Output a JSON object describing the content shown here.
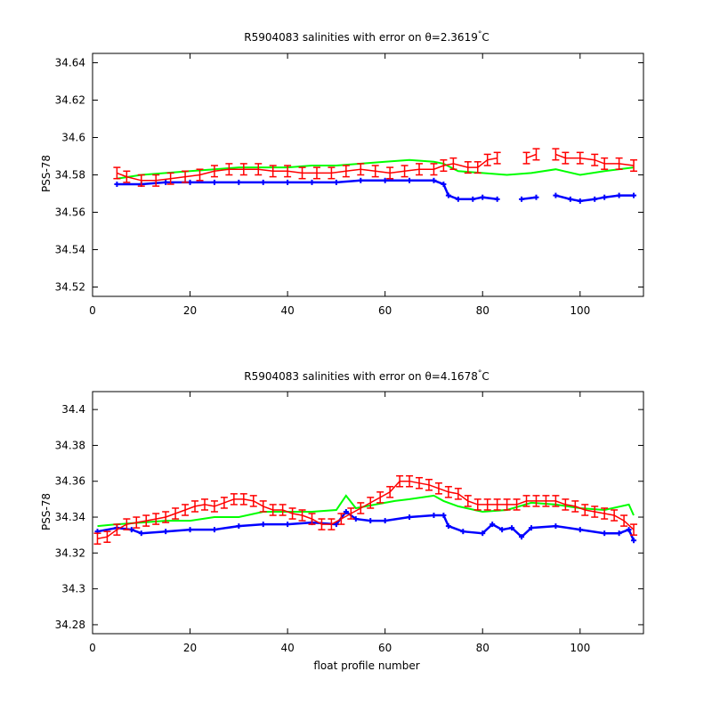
{
  "figure": {
    "xlabel": "float profile number"
  },
  "chart_data": [
    {
      "type": "line",
      "title_prefix": "R5904083 salinities with error on θ=2.3619",
      "title_unit": "C",
      "title_degree": "°",
      "xlabel": "",
      "ylabel": "PSS-78",
      "xlim": [
        0,
        113
      ],
      "ylim": [
        34.515,
        34.645
      ],
      "xticks": [
        0,
        20,
        40,
        60,
        80,
        100
      ],
      "yticks": [
        34.52,
        34.54,
        34.56,
        34.58,
        34.6,
        34.62,
        34.64
      ],
      "ytick_labels": [
        "34.52",
        "34.54",
        "34.56",
        "34.58",
        "34.6",
        "34.62",
        "34.64"
      ],
      "series": [
        {
          "color": "#0000ff",
          "style": "markers",
          "x": [
            5,
            10,
            15,
            20,
            25,
            30,
            35,
            40,
            45,
            50,
            55,
            60,
            65,
            70,
            72,
            73,
            75,
            78,
            80,
            83,
            88,
            91,
            95,
            98,
            100,
            103,
            105,
            108,
            111
          ],
          "y": [
            34.575,
            34.575,
            34.576,
            34.576,
            34.576,
            34.576,
            34.576,
            34.576,
            34.576,
            34.576,
            34.577,
            34.577,
            34.577,
            34.577,
            34.575,
            34.569,
            34.567,
            34.567,
            34.568,
            34.567,
            34.567,
            34.568,
            34.569,
            34.567,
            34.566,
            34.567,
            34.568,
            34.569,
            34.569
          ],
          "gaps_after": [
            83,
            91
          ]
        },
        {
          "color": "#00ff00",
          "style": "line",
          "x": [
            5,
            10,
            15,
            20,
            25,
            30,
            35,
            40,
            45,
            50,
            55,
            60,
            65,
            70,
            72,
            75,
            80,
            85,
            90,
            95,
            100,
            105,
            111
          ],
          "y": [
            34.578,
            34.58,
            34.581,
            34.582,
            34.583,
            34.584,
            34.584,
            34.584,
            34.585,
            34.585,
            34.586,
            34.587,
            34.588,
            34.587,
            34.586,
            34.582,
            34.581,
            34.58,
            34.581,
            34.583,
            34.58,
            34.582,
            34.584
          ]
        },
        {
          "color": "#ff0000",
          "style": "errorbar",
          "error": 0.003,
          "x": [
            5,
            7,
            10,
            13,
            16,
            19,
            22,
            25,
            28,
            31,
            34,
            37,
            40,
            43,
            46,
            49,
            52,
            55,
            58,
            61,
            64,
            67,
            70,
            72,
            74,
            77,
            79,
            81,
            83,
            89,
            91,
            95,
            97,
            100,
            103,
            105,
            108,
            111
          ],
          "y": [
            34.581,
            34.579,
            34.577,
            34.577,
            34.578,
            34.579,
            34.58,
            34.582,
            34.583,
            34.583,
            34.583,
            34.582,
            34.582,
            34.581,
            34.581,
            34.581,
            34.582,
            34.583,
            34.582,
            34.581,
            34.582,
            34.583,
            34.583,
            34.585,
            34.586,
            34.584,
            34.584,
            34.588,
            34.589,
            34.589,
            34.591,
            34.591,
            34.589,
            34.589,
            34.588,
            34.586,
            34.586,
            34.585
          ],
          "gaps_after": [
            83,
            91
          ]
        }
      ]
    },
    {
      "type": "line",
      "title_prefix": "R5904083 salinities with error on θ=4.1678",
      "title_unit": "C",
      "title_degree": "°",
      "xlabel": "float profile number",
      "ylabel": "PSS-78",
      "xlim": [
        0,
        113
      ],
      "ylim": [
        34.275,
        34.41
      ],
      "xticks": [
        0,
        20,
        40,
        60,
        80,
        100
      ],
      "yticks": [
        34.28,
        34.3,
        34.32,
        34.34,
        34.36,
        34.38,
        34.4
      ],
      "ytick_labels": [
        "34.28",
        "34.3",
        "34.32",
        "34.34",
        "34.36",
        "34.38",
        "34.4"
      ],
      "series": [
        {
          "color": "#0000ff",
          "style": "markers",
          "x": [
            1,
            5,
            8,
            10,
            15,
            20,
            25,
            30,
            35,
            40,
            45,
            50,
            52,
            54,
            57,
            60,
            65,
            70,
            72,
            73,
            76,
            80,
            82,
            84,
            86,
            88,
            90,
            95,
            100,
            105,
            108,
            110,
            111
          ],
          "y": [
            34.332,
            34.334,
            34.333,
            34.331,
            34.332,
            34.333,
            34.333,
            34.335,
            34.336,
            34.336,
            34.337,
            34.336,
            34.343,
            34.339,
            34.338,
            34.338,
            34.34,
            34.341,
            34.341,
            34.335,
            34.332,
            34.331,
            34.336,
            34.333,
            34.334,
            34.329,
            34.334,
            34.335,
            34.333,
            34.331,
            34.331,
            34.333,
            34.327
          ]
        },
        {
          "color": "#00ff00",
          "style": "line",
          "x": [
            1,
            5,
            10,
            15,
            20,
            25,
            30,
            35,
            40,
            45,
            50,
            52,
            54,
            58,
            62,
            65,
            70,
            72,
            75,
            80,
            85,
            90,
            95,
            100,
            105,
            110,
            111
          ],
          "y": [
            34.335,
            34.336,
            34.337,
            34.338,
            34.338,
            34.34,
            34.34,
            34.343,
            34.343,
            34.343,
            34.344,
            34.352,
            34.345,
            34.347,
            34.349,
            34.35,
            34.352,
            34.349,
            34.346,
            34.343,
            34.344,
            34.348,
            34.347,
            34.345,
            34.344,
            34.347,
            34.341
          ]
        },
        {
          "color": "#ff0000",
          "style": "errorbar",
          "error": 0.003,
          "x": [
            1,
            3,
            5,
            7,
            9,
            11,
            13,
            15,
            17,
            19,
            21,
            23,
            25,
            27,
            29,
            31,
            33,
            35,
            37,
            39,
            41,
            43,
            45,
            47,
            49,
            51,
            53,
            55,
            57,
            59,
            61,
            63,
            65,
            67,
            69,
            71,
            73,
            75,
            77,
            79,
            81,
            83,
            85,
            87,
            89,
            91,
            93,
            95,
            97,
            99,
            101,
            103,
            105,
            107,
            109,
            111
          ],
          "y": [
            34.328,
            34.329,
            34.333,
            34.336,
            34.337,
            34.338,
            34.339,
            34.34,
            34.342,
            34.344,
            34.346,
            34.347,
            34.346,
            34.348,
            34.35,
            34.35,
            34.349,
            34.346,
            34.344,
            34.344,
            34.342,
            34.341,
            34.339,
            34.336,
            34.336,
            34.339,
            34.342,
            34.345,
            34.348,
            34.351,
            34.354,
            34.36,
            34.36,
            34.359,
            34.358,
            34.356,
            34.354,
            34.353,
            34.349,
            34.347,
            34.347,
            34.347,
            34.347,
            34.347,
            34.349,
            34.349,
            34.349,
            34.349,
            34.347,
            34.346,
            34.344,
            34.343,
            34.342,
            34.341,
            34.338,
            34.333
          ]
        }
      ]
    }
  ]
}
